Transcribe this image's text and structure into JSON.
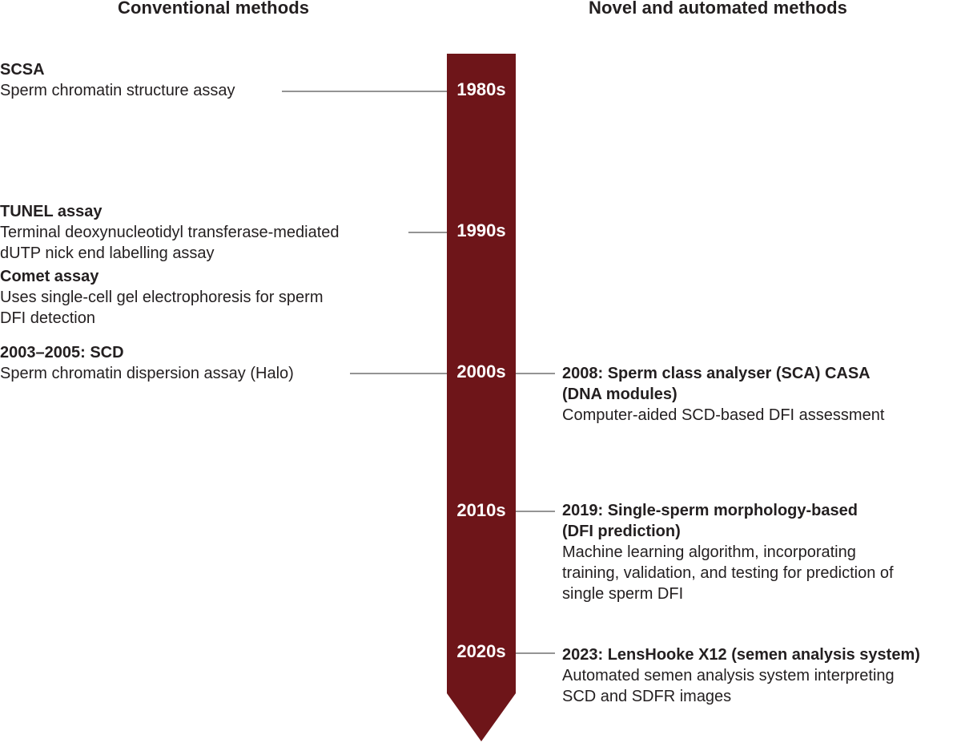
{
  "headers": {
    "left": "Conventional methods",
    "right": "Novel and automated methods"
  },
  "colors": {
    "timeline": "#6e1519",
    "connector": "#555555",
    "text": "#231f20"
  },
  "decades": [
    "1980s",
    "1990s",
    "2000s",
    "2010s",
    "2020s"
  ],
  "conventional": [
    {
      "title": "SCSA",
      "desc": [
        "Sperm chromatin structure assay"
      ]
    },
    {
      "title": "TUNEL assay",
      "desc": [
        "Terminal deoxynucleotidyl transferase-mediated",
        "dUTP nick end labelling assay"
      ]
    },
    {
      "title": "Comet assay",
      "desc": [
        "Uses single-cell gel electrophoresis for sperm",
        "DFI detection"
      ]
    },
    {
      "title": "2003–2005: SCD",
      "desc": [
        "Sperm chromatin dispersion assay (Halo)"
      ]
    }
  ],
  "novel": [
    {
      "title": [
        "2008: Sperm class analyser (SCA) CASA",
        "(DNA modules)"
      ],
      "desc": [
        "Computer-aided SCD-based DFI assessment"
      ]
    },
    {
      "title": [
        "2019: Single-sperm morphology-based",
        "(DFI prediction)"
      ],
      "desc": [
        "Machine learning algorithm, incorporating",
        "training, validation, and testing for prediction of",
        "single sperm DFI"
      ]
    },
    {
      "title": [
        "2023: LensHooke X12 (semen analysis system)"
      ],
      "desc": [
        "Automated semen analysis system interpreting",
        "SCD and SDFR images"
      ]
    }
  ]
}
